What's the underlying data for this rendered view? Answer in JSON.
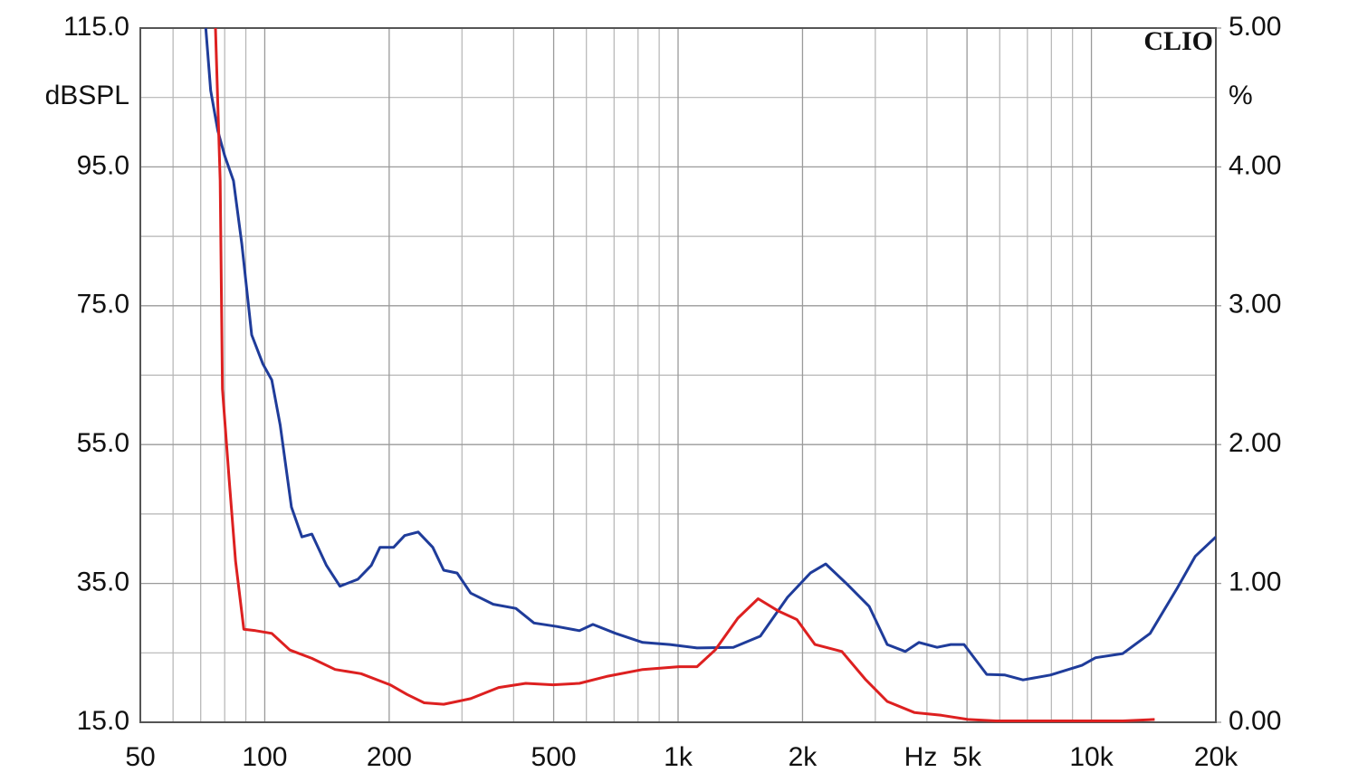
{
  "chart_data": {
    "type": "line",
    "ylabel": "dBSPL",
    "y2label": "%",
    "xlabel": "Hz",
    "brand": "CLIO",
    "xscale": "log",
    "grid": true,
    "xlim": [
      50,
      20000
    ],
    "ylim": [
      15,
      115
    ],
    "y2lim": [
      0,
      5
    ],
    "xticks": [
      50,
      100,
      200,
      500,
      {
        "value": 1000,
        "label": "1k"
      },
      {
        "value": 2000,
        "label": "2k"
      },
      {
        "value": 5000,
        "label": "5k"
      },
      {
        "value": 10000,
        "label": "10k"
      },
      {
        "value": 20000,
        "label": "20k"
      }
    ],
    "xminor_ticks": [
      60,
      70,
      80,
      90,
      300,
      400,
      600,
      700,
      800,
      900,
      3000,
      4000,
      6000,
      7000,
      8000,
      9000
    ],
    "yticks": [
      {
        "value": 15,
        "label": "15.0"
      },
      {
        "value": 35,
        "label": "35.0"
      },
      {
        "value": 55,
        "label": "55.0"
      },
      {
        "value": 75,
        "label": "75.0"
      },
      {
        "value": 95,
        "label": "95.0"
      },
      {
        "value": 115,
        "label": "115.0"
      }
    ],
    "yminor_ticks": [
      25,
      45,
      65,
      85,
      105
    ],
    "y2ticks": [
      {
        "value": 0,
        "label": "0.00"
      },
      {
        "value": 1,
        "label": "1.00"
      },
      {
        "value": 2,
        "label": "2.00"
      },
      {
        "value": 3,
        "label": "3.00"
      },
      {
        "value": 4,
        "label": "4.00"
      },
      {
        "value": 5,
        "label": "5.00"
      }
    ],
    "series": [
      {
        "color": "#1f3c9a",
        "x": [
          72,
          74,
          77,
          80,
          84,
          88,
          93,
          99,
          104,
          109,
          116,
          123,
          130,
          141,
          152,
          168,
          181,
          190,
          205,
          218,
          235,
          255,
          271,
          292,
          315,
          357,
          405,
          448,
          509,
          577,
          622,
          706,
          821,
          955,
          1111,
          1360,
          1581,
          1840,
          2089,
          2276,
          2553,
          2898,
          3206,
          3546,
          3826,
          4232,
          4568,
          4920,
          5580,
          6176,
          6832,
          7955,
          9488,
          10232,
          11910,
          13866,
          16120,
          17830,
          20000
        ],
        "values": [
          115,
          106,
          100.2,
          96.6,
          93,
          83.9,
          70.8,
          66.6,
          64.3,
          57.8,
          46,
          41.7,
          42.1,
          37.6,
          34.6,
          35.6,
          37.6,
          40.2,
          40.2,
          41.9,
          42.4,
          40.2,
          36.9,
          36.5,
          33.6,
          32,
          31.4,
          29.3,
          28.8,
          28.2,
          29.1,
          27.8,
          26.5,
          26.2,
          25.7,
          25.8,
          27.4,
          33,
          36.5,
          37.8,
          35,
          31.7,
          26.2,
          25.2,
          26.5,
          25.8,
          26.2,
          26.2,
          21.9,
          21.8,
          21.1,
          21.8,
          23.2,
          24.3,
          24.9,
          27.8,
          34.3,
          38.9,
          41.7
        ]
      },
      {
        "color": "#dd2020",
        "axis": "y2",
        "x": [
          76,
          78,
          79,
          82,
          85,
          89,
          95,
          104,
          115,
          130,
          148,
          171,
          201,
          221,
          243,
          271,
          315,
          368,
          428,
          498,
          577,
          671,
          821,
          1004,
          1111,
          1229,
          1395,
          1562,
          1751,
          1938,
          2144,
          2490,
          2836,
          3206,
          3733,
          4337,
          5028,
          5868,
          7574,
          9800,
          11910,
          14220
        ],
        "values": [
          5,
          3.9,
          2.4,
          1.75,
          1.16,
          0.67,
          0.66,
          0.64,
          0.52,
          0.46,
          0.38,
          0.35,
          0.27,
          0.2,
          0.14,
          0.13,
          0.17,
          0.25,
          0.28,
          0.27,
          0.28,
          0.33,
          0.38,
          0.4,
          0.4,
          0.52,
          0.75,
          0.89,
          0.8,
          0.74,
          0.56,
          0.51,
          0.31,
          0.15,
          0.07,
          0.05,
          0.02,
          0.01,
          0.01,
          0.01,
          0.01,
          0.02
        ]
      }
    ]
  }
}
